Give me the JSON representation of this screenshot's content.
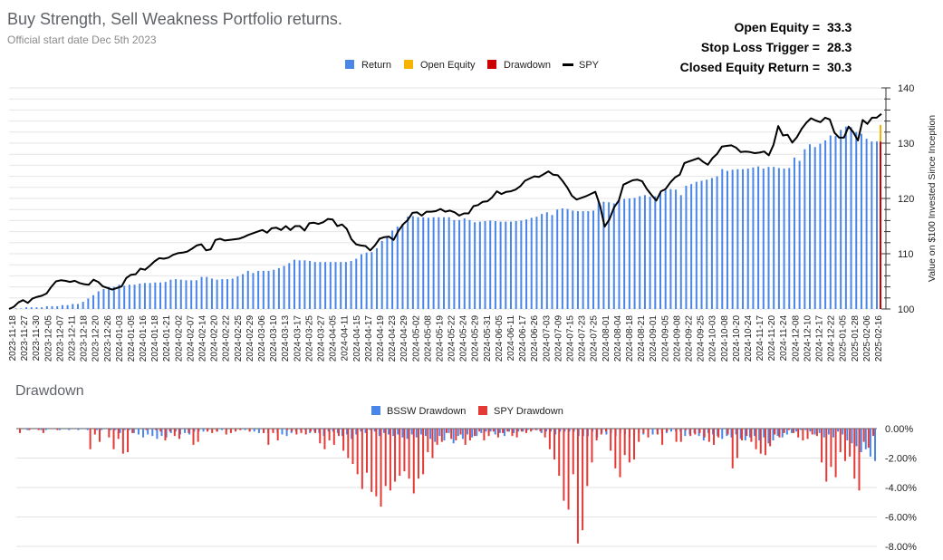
{
  "header": {
    "title": "Buy Strength, Sell Weakness Portfolio returns.",
    "subtitle": "Official start date Dec 5th 2023"
  },
  "stats": [
    {
      "label": "Open Equity =",
      "value": "33.3"
    },
    {
      "label": "Stop Loss Trigger =",
      "value": "28.3"
    },
    {
      "label": "Closed Equity Return =",
      "value": "30.3"
    }
  ],
  "colors": {
    "return": "#4a86e8",
    "open_equity": "#f6b400",
    "drawdown": "#cc0000",
    "spy": "#000000",
    "bssw_drawdown": "#4a86e8",
    "spy_drawdown": "#e53935"
  },
  "chart_data": [
    {
      "type": "bar",
      "title": "",
      "legend": [
        "Return",
        "Open Equity",
        "Drawdown",
        "SPY"
      ],
      "legend_placement": "top",
      "ylabel": "Value on $100 Invested Since Inception",
      "ylim": [
        100,
        140
      ],
      "yticks": [
        100,
        110,
        120,
        130,
        140
      ],
      "x_tick_labels": [
        "2023-11-18",
        "2023-11-27",
        "2023-11-30",
        "2023-12-05",
        "2023-12-07",
        "2023-12-11",
        "2023-12-18",
        "2023-12-20",
        "2023-12-26",
        "2024-01-03",
        "2024-01-05",
        "2024-01-16",
        "2024-01-18",
        "2024-01-21",
        "2024-02-02",
        "2024-02-07",
        "2024-02-14",
        "2024-02-20",
        "2024-02-22",
        "2024-02-25",
        "2024-02-29",
        "2024-03-06",
        "2024-03-10",
        "2024-03-13",
        "2024-03-17",
        "2024-03-25",
        "2024-03-27",
        "2024-04-05",
        "2024-04-11",
        "2024-04-15",
        "2024-04-17",
        "2024-04-19",
        "2024-04-23",
        "2024-04-29",
        "2024-05-02",
        "2024-05-08",
        "2024-05-19",
        "2024-05-22",
        "2024-05-24",
        "2024-05-29",
        "2024-05-31",
        "2024-06-05",
        "2024-06-11",
        "2024-06-17",
        "2024-06-26",
        "2024-07-03",
        "2024-07-09",
        "2024-07-15",
        "2024-07-23",
        "2024-07-25",
        "2024-08-01",
        "2024-08-04",
        "2024-08-18",
        "2024-08-21",
        "2024-09-01",
        "2024-09-05",
        "2024-09-08",
        "2024-09-22",
        "2024-09-25",
        "2024-10-03",
        "2024-10-08",
        "2024-10-20",
        "2024-10-24",
        "2024-11-17",
        "2024-11-20",
        "2024-11-24",
        "2024-12-08",
        "2024-12-10",
        "2024-12-17",
        "2024-12-22",
        "2025-01-05",
        "2025-01-28",
        "2025-02-06",
        "2025-02-16"
      ],
      "series": [
        {
          "name": "Return",
          "values": [
            100.1,
            100.1,
            100.1,
            100.3,
            100.3,
            100.3,
            100.3,
            100.5,
            100.5,
            100.5,
            100.7,
            100.7,
            100.9,
            100.9,
            101.3,
            101.9,
            102.5,
            103.2,
            103.6,
            104.0,
            104.0,
            104.4,
            104.2,
            104.4,
            104.4,
            104.6,
            104.7,
            104.7,
            104.8,
            104.8,
            104.9,
            105.3,
            105.4,
            105.3,
            105.2,
            105.2,
            105.2,
            105.8,
            105.8,
            105.5,
            105.3,
            105.4,
            105.4,
            105.5,
            105.9,
            106.3,
            106.9,
            106.5,
            106.9,
            106.9,
            106.9,
            107.1,
            107.4,
            107.8,
            108.3,
            108.9,
            108.8,
            108.8,
            108.7,
            108.5,
            108.5,
            108.5,
            108.5,
            108.5,
            108.5,
            108.5,
            108.7,
            109.1,
            109.9,
            110.2,
            110.3,
            111.0,
            112.3,
            113.1,
            114.2,
            114.9,
            115.4,
            116.7,
            116.8,
            116.6,
            116.6,
            116.5,
            116.6,
            116.6,
            116.6,
            116.6,
            116.1,
            116.1,
            116.4,
            116.1,
            115.7,
            115.8,
            115.9,
            116.0,
            115.9,
            115.8,
            115.8,
            115.8,
            115.9,
            116.0,
            116.2,
            116.5,
            116.7,
            117.2,
            117.5,
            117.0,
            118.0,
            118.2,
            118.1,
            117.8,
            117.7,
            117.7,
            117.7,
            117.8,
            119.5,
            119.4,
            119.3,
            119.1,
            119.6,
            119.9,
            120.0,
            120.1,
            120.4,
            120.6,
            120.3,
            120.4,
            121.0,
            121.5,
            121.7,
            121.6,
            120.6,
            122.3,
            122.6,
            123.0,
            123.2,
            123.4,
            123.7,
            124.0,
            125.3,
            125.0,
            125.2,
            125.3,
            125.3,
            125.4,
            125.6,
            125.8,
            125.4,
            125.7,
            125.7,
            125.5,
            125.4,
            125.5,
            127.4,
            126.8,
            128.9,
            129.8,
            129.3,
            129.9,
            130.5,
            131.4,
            131.3,
            132.4,
            133.0,
            132.9,
            132.0,
            131.7,
            130.8,
            130.3,
            130.3
          ]
        },
        {
          "name": "Open Equity",
          "values": [
            133.3
          ]
        },
        {
          "name": "SPY",
          "values": [
            100.0,
            100.4,
            101.2,
            101.6,
            101.1,
            101.9,
            102.2,
            102.4,
            102.8,
            104.0,
            105.0,
            105.2,
            105.1,
            104.9,
            105.1,
            104.7,
            104.5,
            104.4,
            105.3,
            104.9,
            104.1,
            103.8,
            103.5,
            103.8,
            104.1,
            105.6,
            106.2,
            106.3,
            107.3,
            107.1,
            107.8,
            108.6,
            109.2,
            109.1,
            109.3,
            109.8,
            110.1,
            110.2,
            110.4,
            110.9,
            111.5,
            111.7,
            110.6,
            110.8,
            112.5,
            112.7,
            112.4,
            112.5,
            112.6,
            112.7,
            113.0,
            113.4,
            113.7,
            114.0,
            114.3,
            113.8,
            114.6,
            114.7,
            114.3,
            115.0,
            114.3,
            115.0,
            115.0,
            114.2,
            115.5,
            115.6,
            115.4,
            115.7,
            116.3,
            116.2,
            115.0,
            115.3,
            114.5,
            112.6,
            111.7,
            111.5,
            111.4,
            110.6,
            111.5,
            112.7,
            113.0,
            113.1,
            112.5,
            114.1,
            115.3,
            116.1,
            117.4,
            117.5,
            116.9,
            117.6,
            117.6,
            117.7,
            118.1,
            117.6,
            117.8,
            117.5,
            116.9,
            117.3,
            117.3,
            118.6,
            118.8,
            119.4,
            119.5,
            120.2,
            121.3,
            120.8,
            121.2,
            121.3,
            121.6,
            122.2,
            123.2,
            123.6,
            124.0,
            123.9,
            124.4,
            124.9,
            124.3,
            124.2,
            123.2,
            122.0,
            120.5,
            119.8,
            120.1,
            120.4,
            120.8,
            121.2,
            118.7,
            114.9,
            116.2,
            118.4,
            119.6,
            122.5,
            122.9,
            123.3,
            123.4,
            123.1,
            121.7,
            120.6,
            119.6,
            121.3,
            121.7,
            122.9,
            123.8,
            124.3,
            126.4,
            126.7,
            127.0,
            127.3,
            126.6,
            126.1,
            127.3,
            128.1,
            129.4,
            129.5,
            129.6,
            129.2,
            128.4,
            128.5,
            128.4,
            128.2,
            128.3,
            128.5,
            127.8,
            129.7,
            133.1,
            131.4,
            131.5,
            130.1,
            131.1,
            132.6,
            133.7,
            134.5,
            134.1,
            133.8,
            134.6,
            134.3,
            131.9,
            131.0,
            131.0,
            133.0,
            132.0,
            130.5,
            134.2,
            133.5,
            134.6,
            134.6,
            135.3
          ]
        }
      ]
    },
    {
      "type": "bar",
      "title": "Drawdown",
      "legend": [
        "BSSW Drawdown",
        "SPY Drawdown"
      ],
      "legend_placement": "top",
      "ylim": [
        -8,
        0
      ],
      "ytick_labels": [
        "0.00%",
        "-2.00%",
        "-4.00%",
        "-6.00%",
        "-8.00%"
      ],
      "x_tick_labels": [],
      "series": [
        {
          "name": "BSSW Drawdown",
          "values": [
            0,
            0,
            -0.1,
            0,
            0,
            -0.1,
            -0.1,
            0,
            0,
            -0.1,
            0,
            -0.1,
            0,
            -0.1,
            0,
            -0.1,
            0,
            -0.1,
            -0.1,
            0,
            -0.1,
            -0.1,
            -0.3,
            -0.1,
            -0.1,
            -0.3,
            -0.4,
            -0.6,
            -0.4,
            -0.5,
            -0.7,
            -0.5,
            -0.6,
            -0.3,
            -0.2,
            -0.4,
            -0.3,
            -0.4,
            -0.2,
            -0.2,
            -0.2,
            -0.1,
            0,
            -0.2,
            -0.1,
            -0.1,
            0,
            0,
            -0.1,
            -0.1,
            -0.2,
            -0.2,
            -0.3,
            -0.3,
            -0.3,
            -0.1,
            -0.3,
            -0.4,
            -0.5,
            -0.3,
            -0.2,
            -0.1,
            -0.1,
            -0.3,
            -0.2,
            -0.3,
            -0.5,
            -0.2,
            -0.2,
            -0.3,
            -0.5,
            -0.4,
            -0.7,
            -0.4,
            -0.2,
            -0.3,
            -0.1,
            -0.2,
            -0.5,
            -0.3,
            -0.4,
            -0.5,
            -0.4,
            -0.6,
            -0.7,
            -0.4,
            -0.6,
            -0.4,
            -0.5,
            -0.7,
            -0.9,
            -0.5,
            -0.8,
            -0.3,
            -1.0,
            -0.5,
            -0.7,
            -0.4,
            -0.6,
            -0.5,
            -0.3,
            -0.2,
            -0.2,
            -0.4,
            -0.3,
            -0.5,
            -0.2,
            -0.3,
            -0.2,
            -0.2,
            -0.1,
            -0.1,
            -0.1,
            -0.3,
            -0.2,
            -0.2,
            -0.4,
            -0.2,
            -0.2,
            -0.2,
            -0.2,
            -0.5,
            -0.5,
            -0.5,
            -0.2,
            -0.6,
            -0.3,
            -0.4,
            -0.3,
            -0.5,
            -0.3,
            -0.4,
            -0.6,
            -0.4,
            -0.3,
            -0.4,
            -0.2,
            -0.4,
            -0.2,
            -0.3,
            -0.3,
            -0.2,
            -0.2,
            -0.2,
            -0.5,
            -0.4,
            -0.3,
            -0.5,
            -0.8,
            -0.3,
            -0.4,
            -0.5,
            -0.7,
            -0.5,
            -0.6,
            -0.4,
            -0.7,
            -0.8,
            -0.6,
            -0.5,
            -0.8,
            -0.6,
            -1.0,
            -0.8,
            -0.5,
            -0.6,
            -0.4,
            -0.3,
            -0.2,
            -0.1,
            -0.1,
            -0.2,
            -0.4,
            -0.3,
            -0.6,
            -0.4,
            -0.6,
            -0.2,
            -0.4,
            -0.8,
            -1.0,
            -1.2,
            -1.6,
            -1.4,
            -1.9,
            -2.2
          ]
        },
        {
          "name": "SPY Drawdown",
          "values": [
            -0.3,
            0,
            -0.1,
            0,
            -0.1,
            -0.3,
            0,
            0,
            -0.1,
            0,
            0,
            0,
            0,
            0,
            0,
            -1.4,
            -0.4,
            -0.9,
            0,
            -0.6,
            -1.4,
            -0.7,
            -1.7,
            -1.6,
            -0.3,
            0,
            0,
            -0.1,
            0,
            -0.1,
            -0.2,
            -0.8,
            -0.2,
            -0.5,
            -0.7,
            0,
            -0.3,
            -1.1,
            -0.9,
            0,
            -0.2,
            -0.3,
            -0.2,
            0,
            -0.4,
            -0.3,
            -0.2,
            -0.1,
            0,
            -0.2,
            0,
            0,
            -0.3,
            -1.1,
            -0.3,
            -0.8,
            0,
            -0.1,
            -0.2,
            -0.4,
            -0.3,
            -0.4,
            -0.2,
            -0.3,
            -1.0,
            -1.4,
            -0.8,
            -1.1,
            -0.5,
            -1.5,
            -2.0,
            -2.4,
            -3.1,
            -4.1,
            -3.0,
            -4.3,
            -4.6,
            -5.3,
            -3.9,
            -4.2,
            -3.6,
            -3.2,
            -2.9,
            -3.4,
            -4.4,
            -3.4,
            -3.1,
            -1.6,
            -2.0,
            -1.1,
            -0.9,
            -0.3,
            -0.7,
            -0.8,
            -0.4,
            -1.1,
            -0.8,
            -0.5,
            -0.2,
            -0.8,
            -0.5,
            -0.2,
            -0.6,
            -0.3,
            -0.2,
            -0.5,
            -0.6,
            -0.2,
            -0.3,
            -0.2,
            -0.1,
            -0.2,
            -0.6,
            -1.4,
            -2.1,
            -3.2,
            -4.9,
            -5.5,
            -3.1,
            -7.8,
            -6.9,
            -3.9,
            -2.3,
            -0.8,
            -0.4,
            -0.2,
            -1.5,
            -2.7,
            -3.3,
            -1.8,
            -2.3,
            -2.1,
            -0.9,
            -0.3,
            -0.6,
            0,
            -0.4,
            -1.1,
            -0.2,
            0,
            -0.9,
            -0.9,
            -0.1,
            -0.5,
            -0.4,
            -0.3,
            -0.6,
            -0.9,
            -1.1,
            -0.6,
            0,
            -0.4,
            -2.7,
            -2.0,
            -0.8,
            -0.5,
            -0.9,
            -1.4,
            -1.7,
            -1.8,
            -1.2,
            -0.4,
            -0.6,
            -0.3,
            -0.1,
            -0.3,
            -0.6,
            -0.8,
            -0.7,
            -0.4,
            -0.5,
            -2.3,
            -3.6,
            -2.6,
            -3.3,
            -1.6,
            -2.2,
            -1.9,
            -3.4,
            -4.2,
            -0.9,
            -1.3,
            -0.5
          ]
        }
      ]
    }
  ]
}
